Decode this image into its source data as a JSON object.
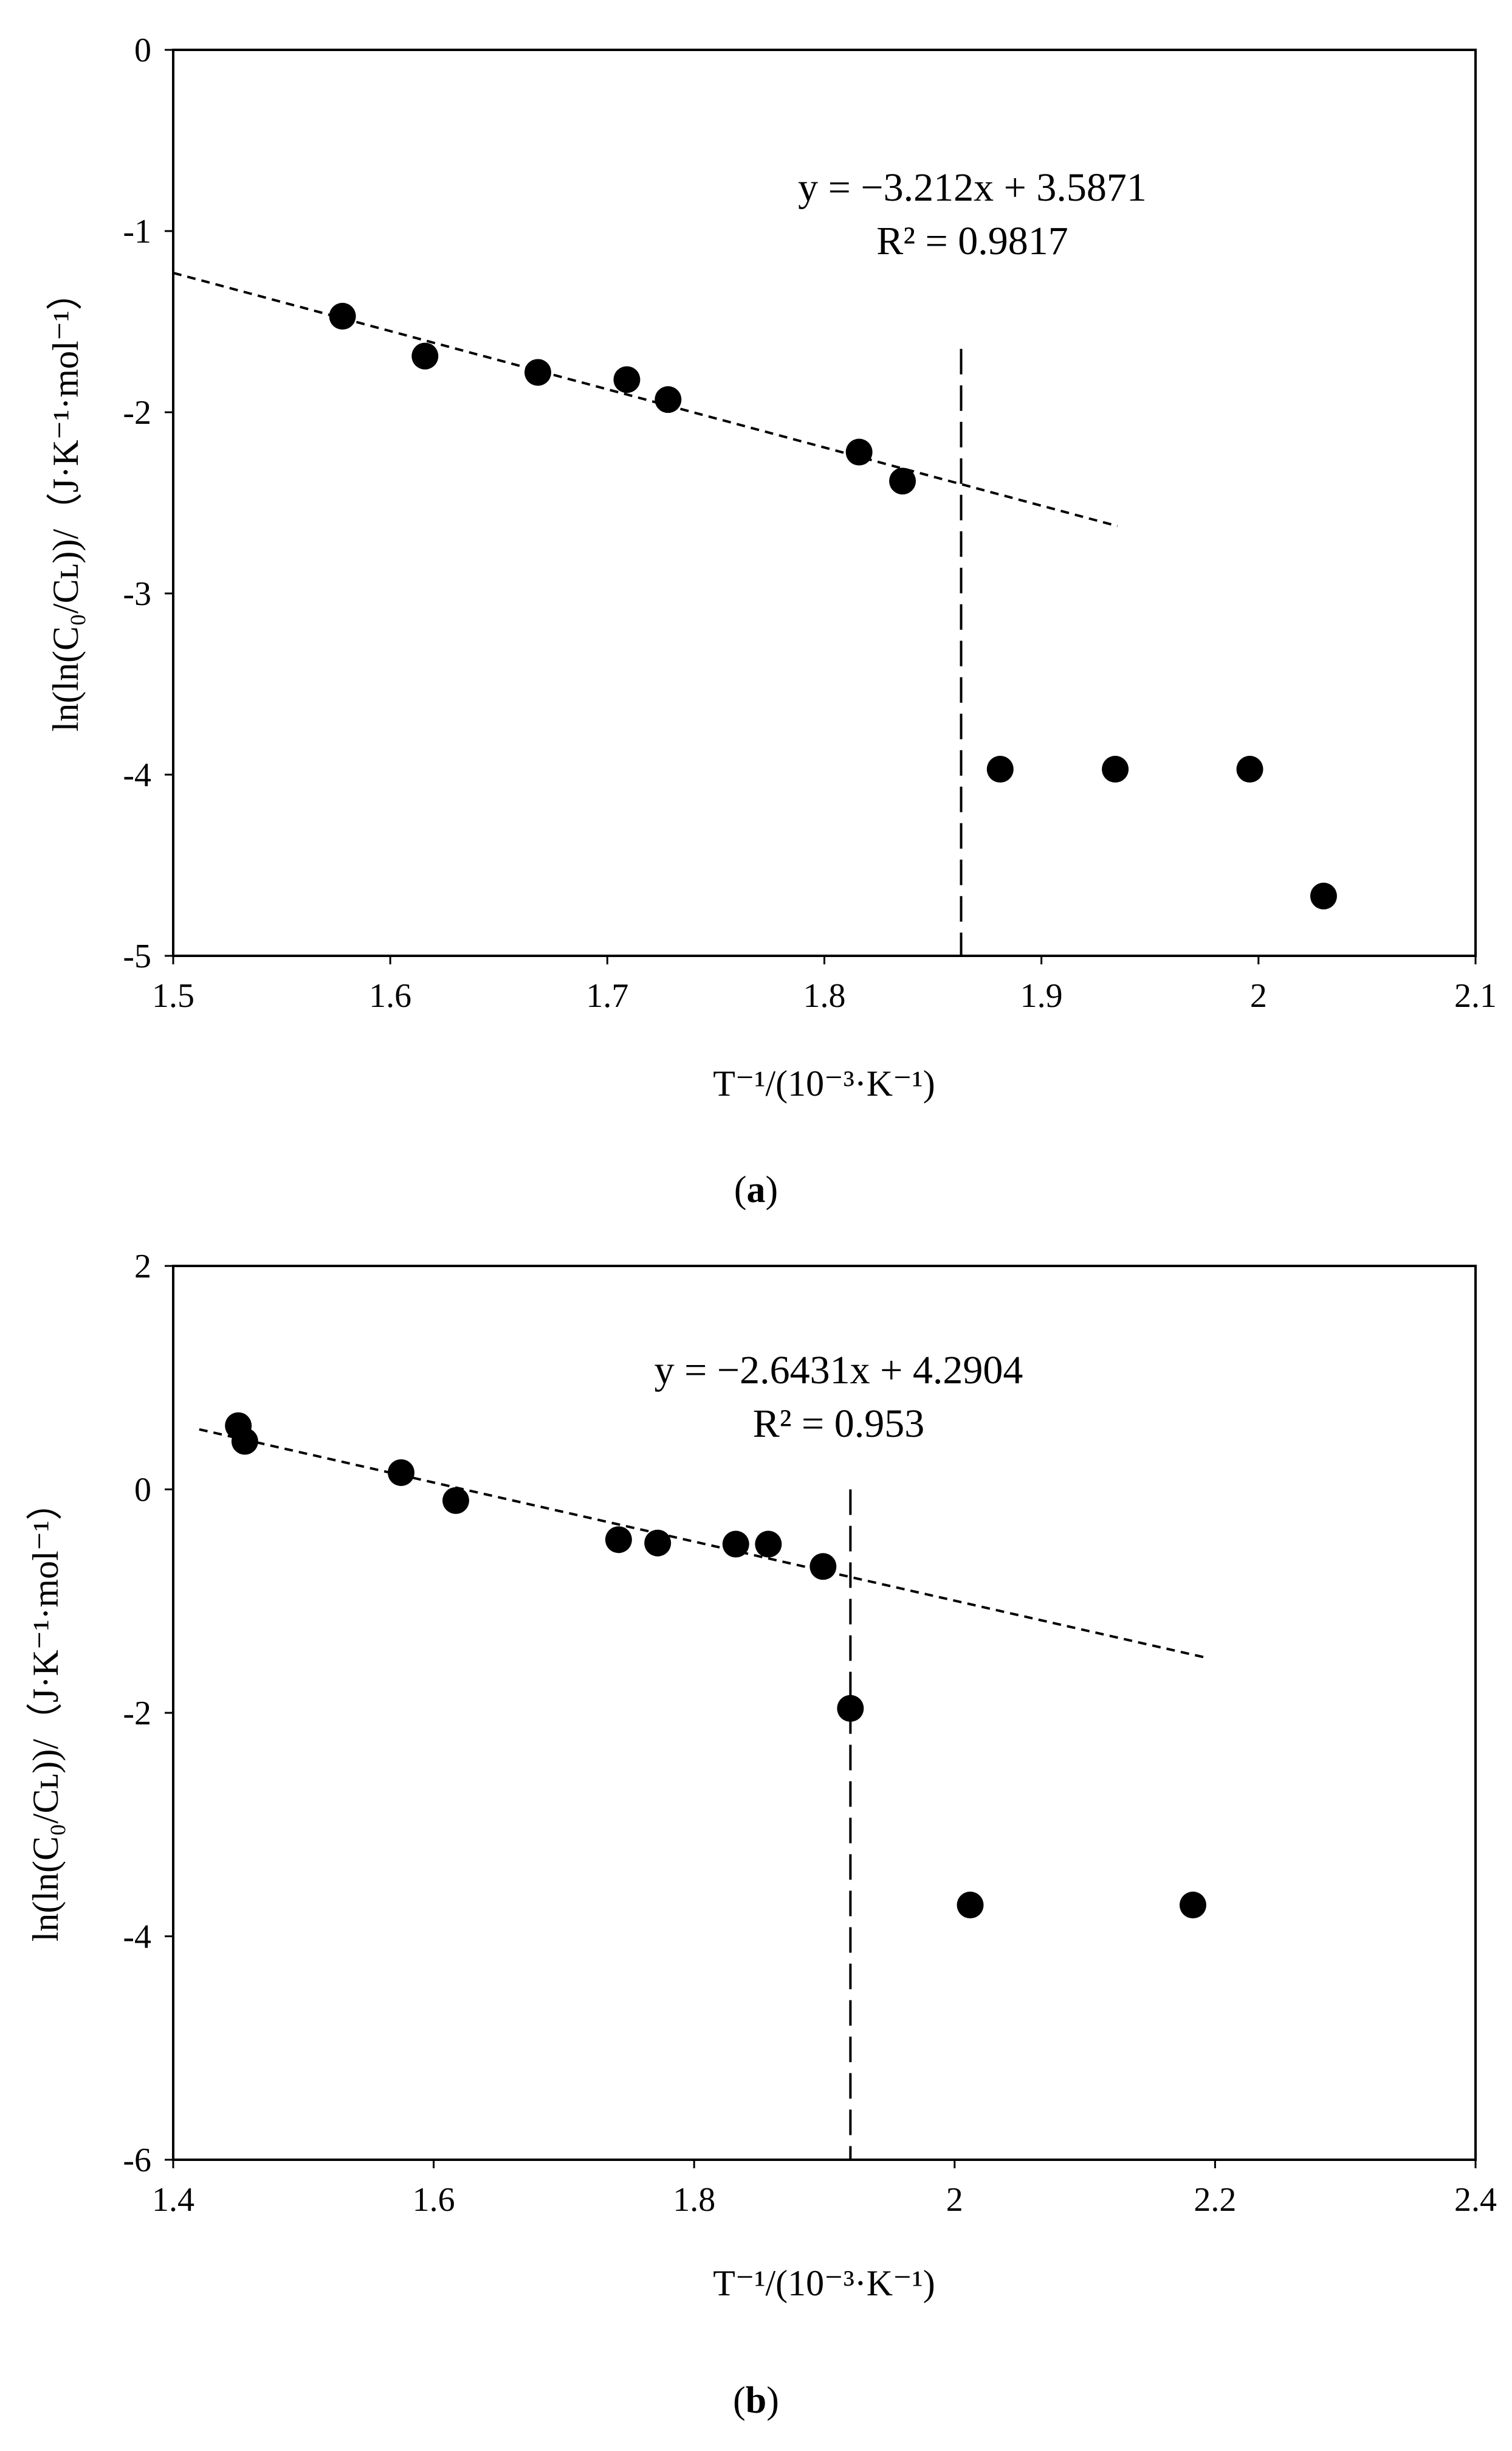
{
  "chart_data": [
    {
      "type": "scatter",
      "panel": "a",
      "caption": "(a)",
      "caption_letter": "a",
      "xlabel": "T⁻¹/(10⁻³·K⁻¹)",
      "ylabel": "ln(ln(C₀/Cʟ))/（J·K⁻¹·mol⁻¹）",
      "xlim": [
        1.5,
        2.1
      ],
      "ylim": [
        -5,
        0
      ],
      "xticks": [
        1.5,
        1.6,
        1.7,
        1.8,
        1.9,
        2.0,
        2.1
      ],
      "xtick_labels": [
        "1.5",
        "1.6",
        "1.7",
        "1.8",
        "1.9",
        "2",
        "2.1"
      ],
      "yticks": [
        0,
        -1,
        -2,
        -3,
        -4,
        -5
      ],
      "ytick_labels": [
        "0",
        "-1",
        "-2",
        "-3",
        "-4",
        "-5"
      ],
      "grid": false,
      "points": [
        {
          "x": 1.578,
          "y": -1.47
        },
        {
          "x": 1.616,
          "y": -1.69
        },
        {
          "x": 1.668,
          "y": -1.78
        },
        {
          "x": 1.709,
          "y": -1.82
        },
        {
          "x": 1.728,
          "y": -1.93
        },
        {
          "x": 1.816,
          "y": -2.22
        },
        {
          "x": 1.836,
          "y": -2.38
        },
        {
          "x": 1.881,
          "y": -3.97
        },
        {
          "x": 1.934,
          "y": -3.97
        },
        {
          "x": 1.996,
          "y": -3.97
        },
        {
          "x": 2.03,
          "y": -4.67
        }
      ],
      "trendline": {
        "slope": -3.212,
        "intercept": 3.5871,
        "x_range": [
          1.5,
          1.935
        ]
      },
      "vertical_line": {
        "x": 1.863,
        "y_range": [
          -5,
          -1.65
        ]
      },
      "equation": "y = −3.212x + 3.5871",
      "r_squared": "R² = 0.9817"
    },
    {
      "type": "scatter",
      "panel": "b",
      "caption": "(b)",
      "caption_letter": "b",
      "xlabel": "T⁻¹/(10⁻³·K⁻¹)",
      "ylabel": "ln(ln(C₀/Cʟ))/（J·K⁻¹·mol⁻¹）",
      "xlim": [
        1.4,
        2.4
      ],
      "ylim": [
        -6,
        2
      ],
      "xticks": [
        1.4,
        1.6,
        1.8,
        2.0,
        2.2,
        2.4
      ],
      "xtick_labels": [
        "1.4",
        "1.6",
        "1.8",
        "2",
        "2.2",
        "2.4"
      ],
      "yticks": [
        2,
        0,
        -2,
        -4,
        -6
      ],
      "ytick_labels": [
        "2",
        "0",
        "-2",
        "-4",
        "-6"
      ],
      "grid": false,
      "points": [
        {
          "x": 1.45,
          "y": 0.57
        },
        {
          "x": 1.455,
          "y": 0.43
        },
        {
          "x": 1.575,
          "y": 0.15
        },
        {
          "x": 1.617,
          "y": -0.1
        },
        {
          "x": 1.742,
          "y": -0.45
        },
        {
          "x": 1.772,
          "y": -0.48
        },
        {
          "x": 1.832,
          "y": -0.49
        },
        {
          "x": 1.857,
          "y": -0.49
        },
        {
          "x": 1.899,
          "y": -0.69
        },
        {
          "x": 1.92,
          "y": -1.96
        },
        {
          "x": 2.012,
          "y": -3.72
        },
        {
          "x": 2.183,
          "y": -3.72
        }
      ],
      "trendline": {
        "slope": -2.6431,
        "intercept": 4.2904,
        "x_range": [
          1.42,
          2.195
        ]
      },
      "vertical_line": {
        "x": 1.92,
        "y_range": [
          -6,
          0
        ]
      },
      "equation": "y = −2.6431x + 4.2904",
      "r_squared": "R² = 0.953"
    }
  ]
}
